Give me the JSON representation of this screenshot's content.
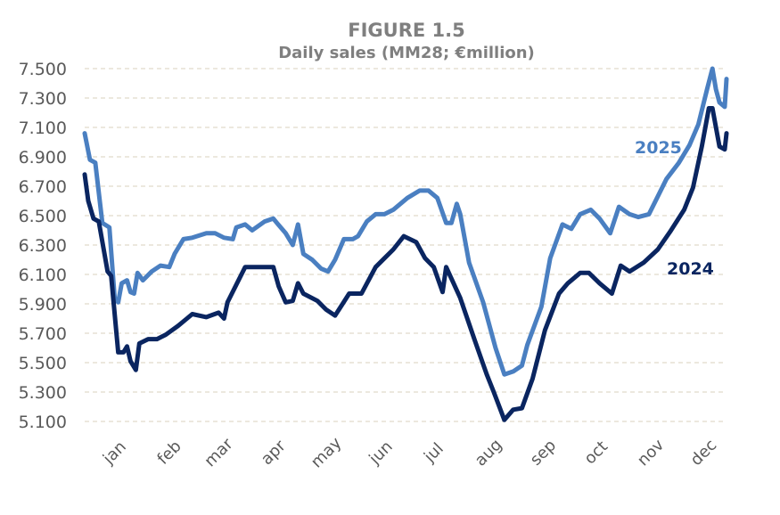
{
  "chart_data": {
    "type": "line",
    "title": "FIGURE 1.5",
    "subtitle": "Daily sales (MM28; €million)",
    "xlabel": "",
    "ylabel": "",
    "x_unit": "day of year",
    "x_tick_labels": [
      "jan",
      "feb",
      "mar",
      "apr",
      "may",
      "jun",
      "jul",
      "aug",
      "sep",
      "oct",
      "nov",
      "dec"
    ],
    "y_ticks": [
      "5.100",
      "5.300",
      "5.500",
      "5.700",
      "5.900",
      "6.100",
      "6.300",
      "6.500",
      "6.700",
      "6.900",
      "7.100",
      "7.300",
      "7.500"
    ],
    "ylim": [
      5.1,
      7.5
    ],
    "xlim": [
      1,
      365
    ],
    "grid": true,
    "legend": "inline labels at right",
    "series": [
      {
        "name": "2025",
        "color": "#4a7fc1",
        "x": [
          1,
          4,
          7,
          11,
          15,
          18,
          20,
          22,
          25,
          27,
          29,
          31,
          34,
          39,
          44,
          49,
          52,
          57,
          62,
          70,
          75,
          80,
          85,
          87,
          92,
          96,
          103,
          108,
          110,
          115,
          119,
          122,
          125,
          130,
          135,
          139,
          143,
          148,
          153,
          156,
          161,
          166,
          171,
          176,
          184,
          191,
          196,
          201,
          206,
          209,
          212,
          214,
          219,
          227,
          234,
          239,
          244,
          249,
          252,
          260,
          265,
          272,
          277,
          282,
          288,
          293,
          299,
          304,
          310,
          315,
          321,
          326,
          331,
          338,
          344,
          349,
          354,
          357,
          359,
          361,
          364,
          365
        ],
        "y": [
          7.06,
          6.88,
          6.86,
          6.45,
          6.42,
          5.94,
          5.91,
          6.04,
          6.06,
          5.98,
          5.97,
          6.11,
          6.06,
          6.12,
          6.16,
          6.15,
          6.24,
          6.34,
          6.35,
          6.38,
          6.38,
          6.35,
          6.34,
          6.42,
          6.44,
          6.4,
          6.46,
          6.48,
          6.45,
          6.38,
          6.3,
          6.44,
          6.24,
          6.2,
          6.14,
          6.12,
          6.2,
          6.34,
          6.34,
          6.36,
          6.46,
          6.51,
          6.51,
          6.54,
          6.62,
          6.67,
          6.67,
          6.62,
          6.45,
          6.45,
          6.58,
          6.51,
          6.18,
          5.91,
          5.6,
          5.42,
          5.44,
          5.48,
          5.62,
          5.88,
          6.21,
          6.44,
          6.41,
          6.51,
          6.54,
          6.48,
          6.38,
          6.56,
          6.51,
          6.49,
          6.51,
          6.63,
          6.75,
          6.86,
          6.98,
          7.12,
          7.36,
          7.5,
          7.36,
          7.27,
          7.24,
          7.43
        ]
      },
      {
        "name": "2024",
        "color": "#0a2560",
        "x": [
          1,
          3,
          6,
          9,
          14,
          16,
          20,
          23,
          25,
          27,
          30,
          32,
          37,
          42,
          47,
          54,
          59,
          62,
          70,
          77,
          80,
          82,
          87,
          92,
          100,
          108,
          111,
          115,
          119,
          122,
          125,
          133,
          138,
          143,
          151,
          158,
          166,
          171,
          176,
          182,
          189,
          194,
          199,
          204,
          206,
          214,
          222,
          229,
          233,
          239,
          244,
          249,
          255,
          262,
          270,
          275,
          282,
          287,
          293,
          300,
          305,
          310,
          318,
          326,
          333,
          341,
          346,
          351,
          355,
          357,
          361,
          364,
          365
        ],
        "y": [
          6.78,
          6.6,
          6.48,
          6.46,
          6.12,
          6.09,
          5.57,
          5.57,
          5.61,
          5.51,
          5.45,
          5.63,
          5.66,
          5.66,
          5.69,
          5.75,
          5.8,
          5.83,
          5.81,
          5.84,
          5.8,
          5.91,
          6.03,
          6.15,
          6.15,
          6.15,
          6.02,
          5.91,
          5.92,
          6.04,
          5.97,
          5.92,
          5.86,
          5.82,
          5.97,
          5.97,
          6.15,
          6.21,
          6.27,
          6.36,
          6.32,
          6.21,
          6.15,
          5.98,
          6.15,
          5.94,
          5.66,
          5.42,
          5.3,
          5.11,
          5.18,
          5.19,
          5.39,
          5.72,
          5.97,
          6.04,
          6.11,
          6.11,
          6.04,
          5.97,
          6.16,
          6.12,
          6.18,
          6.27,
          6.39,
          6.54,
          6.69,
          6.97,
          7.23,
          7.23,
          6.97,
          6.95,
          7.06
        ]
      }
    ]
  }
}
